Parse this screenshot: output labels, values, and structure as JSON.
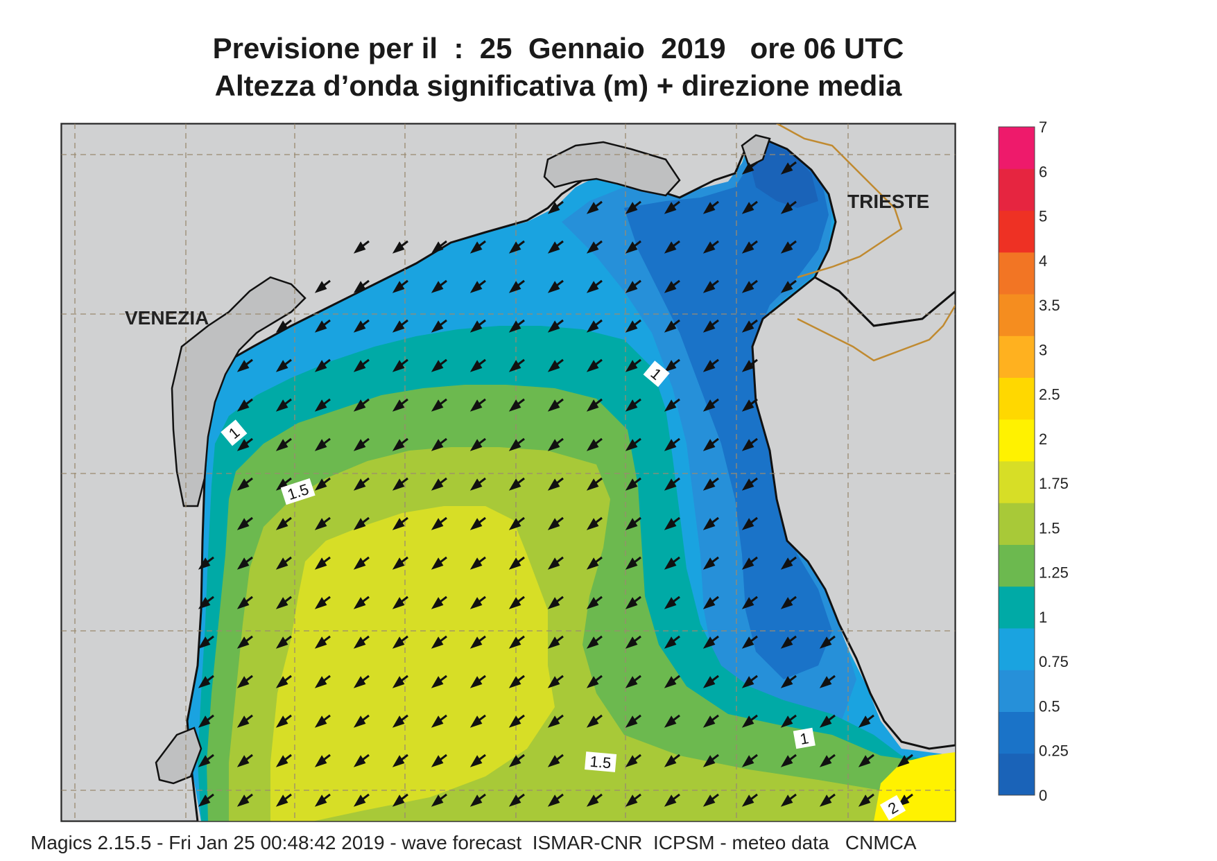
{
  "header": {
    "title_line1": "Previsione per il  :  25  Gennaio  2019   ore 06 UTC",
    "title_line2": "Altezza d’onda significativa (m) + direzione media"
  },
  "map": {
    "place_labels": [
      "VENEZIA",
      "TRIESTE"
    ],
    "contour_labels": [
      "1",
      "1.5",
      "1",
      "1.5",
      "1",
      "2"
    ],
    "colors": {
      "land": "#d0d1d2",
      "coast": "#111111",
      "border": "#c08a30",
      "grid": "#9a8a70"
    },
    "arrow_direction": "toward south-west"
  },
  "legend": {
    "labels": [
      "7",
      "6",
      "5",
      "4",
      "3.5",
      "3",
      "2.5",
      "2",
      "1.75",
      "1.5",
      "1.25",
      "1",
      "0.75",
      "0.5",
      "0.25",
      "0"
    ],
    "colors": [
      "#1a63b8",
      "#1a73c8",
      "#2690d9",
      "#1aa3e0",
      "#00aaa6",
      "#6cb94f",
      "#a8c938",
      "#d7de26",
      "#fff200",
      "#ffd800",
      "#ffb11f",
      "#f58d1f",
      "#f27524",
      "#ee3124",
      "#e62540",
      "#ee1a6b"
    ]
  },
  "footer": {
    "text": "Magics 2.15.5 - Fri Jan 25 00:48:42 2019 - wave forecast  ISMAR-CNR  ICPSM - meteo data   CNMCA"
  }
}
